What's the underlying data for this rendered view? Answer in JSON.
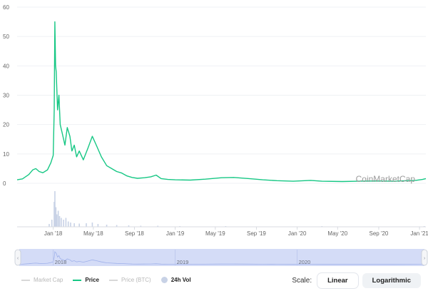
{
  "chart_data": {
    "type": "line",
    "watermark": "CoinMarketCap",
    "ylim": [
      0,
      60
    ],
    "yticks": [
      "0",
      "10",
      "20",
      "30",
      "40",
      "50",
      "60"
    ],
    "xticks": [
      "Jan '18",
      "May '18",
      "Sep '18",
      "Jan '19",
      "May '19",
      "Sep '19",
      "Jan '20",
      "May '20",
      "Sep '20",
      "Jan '21"
    ],
    "navigator_labels": [
      "2018",
      "2019",
      "2020"
    ],
    "grid": true,
    "series": [
      {
        "name": "Price",
        "color": "#16c784",
        "points": [
          [
            "2017-09-15",
            1.2
          ],
          [
            "2017-10-01",
            1.5
          ],
          [
            "2017-10-20",
            3.0
          ],
          [
            "2017-11-01",
            4.6
          ],
          [
            "2017-11-10",
            5.0
          ],
          [
            "2017-11-20",
            4.0
          ],
          [
            "2017-12-01",
            3.6
          ],
          [
            "2017-12-15",
            4.6
          ],
          [
            "2017-12-25",
            7.0
          ],
          [
            "2018-01-01",
            9.5
          ],
          [
            "2018-01-04",
            25.0
          ],
          [
            "2018-01-06",
            55.0
          ],
          [
            "2018-01-08",
            40.0
          ],
          [
            "2018-01-10",
            38.0
          ],
          [
            "2018-01-14",
            25.0
          ],
          [
            "2018-01-18",
            30.0
          ],
          [
            "2018-01-22",
            20.0
          ],
          [
            "2018-01-28",
            17.0
          ],
          [
            "2018-02-05",
            13.0
          ],
          [
            "2018-02-12",
            19.0
          ],
          [
            "2018-02-20",
            16.0
          ],
          [
            "2018-02-26",
            11.0
          ],
          [
            "2018-03-05",
            13.0
          ],
          [
            "2018-03-12",
            9.0
          ],
          [
            "2018-03-20",
            11.0
          ],
          [
            "2018-04-01",
            8.0
          ],
          [
            "2018-04-15",
            12.0
          ],
          [
            "2018-04-28",
            16.0
          ],
          [
            "2018-05-10",
            13.0
          ],
          [
            "2018-05-25",
            9.0
          ],
          [
            "2018-06-10",
            6.0
          ],
          [
            "2018-06-25",
            5.0
          ],
          [
            "2018-07-10",
            4.0
          ],
          [
            "2018-07-25",
            3.5
          ],
          [
            "2018-08-10",
            2.5
          ],
          [
            "2018-08-25",
            2.0
          ],
          [
            "2018-09-10",
            1.7
          ],
          [
            "2018-10-01",
            1.9
          ],
          [
            "2018-10-20",
            2.2
          ],
          [
            "2018-11-05",
            2.8
          ],
          [
            "2018-11-20",
            1.6
          ],
          [
            "2018-12-10",
            1.3
          ],
          [
            "2019-01-01",
            1.2
          ],
          [
            "2019-02-15",
            1.1
          ],
          [
            "2019-04-01",
            1.4
          ],
          [
            "2019-05-20",
            1.9
          ],
          [
            "2019-06-25",
            2.0
          ],
          [
            "2019-08-10",
            1.6
          ],
          [
            "2019-09-20",
            1.2
          ],
          [
            "2019-11-01",
            0.9
          ],
          [
            "2019-12-20",
            0.7
          ],
          [
            "2020-02-10",
            1.0
          ],
          [
            "2020-03-15",
            0.7
          ],
          [
            "2020-05-15",
            0.6
          ],
          [
            "2020-07-01",
            0.7
          ],
          [
            "2020-08-20",
            0.8
          ],
          [
            "2020-10-15",
            0.7
          ],
          [
            "2020-12-20",
            1.0
          ],
          [
            "2021-01-10",
            1.3
          ],
          [
            "2021-01-20",
            1.6
          ]
        ]
      }
    ],
    "volume": {
      "name": "24h Vol",
      "color": "#c8d2e6",
      "points": [
        [
          "2017-12-20",
          0.08
        ],
        [
          "2017-12-28",
          0.2
        ],
        [
          "2018-01-04",
          0.7
        ],
        [
          "2018-01-06",
          1.0
        ],
        [
          "2018-01-09",
          0.55
        ],
        [
          "2018-01-12",
          0.35
        ],
        [
          "2018-01-16",
          0.45
        ],
        [
          "2018-01-20",
          0.3
        ],
        [
          "2018-01-25",
          0.25
        ],
        [
          "2018-02-01",
          0.2
        ],
        [
          "2018-02-08",
          0.25
        ],
        [
          "2018-02-15",
          0.15
        ],
        [
          "2018-02-22",
          0.12
        ],
        [
          "2018-03-05",
          0.1
        ],
        [
          "2018-03-20",
          0.09
        ],
        [
          "2018-04-10",
          0.1
        ],
        [
          "2018-04-28",
          0.12
        ],
        [
          "2018-05-15",
          0.08
        ],
        [
          "2018-06-10",
          0.06
        ],
        [
          "2018-07-10",
          0.05
        ],
        [
          "2018-08-15",
          0.04
        ],
        [
          "2018-09-20",
          0.03
        ],
        [
          "2018-11-10",
          0.03
        ],
        [
          "2019-01-15",
          0.02
        ],
        [
          "2019-06-01",
          0.02
        ],
        [
          "2019-11-01",
          0.01
        ],
        [
          "2020-03-15",
          0.02
        ],
        [
          "2020-09-01",
          0.01
        ],
        [
          "2021-01-15",
          0.02
        ]
      ]
    }
  },
  "legend": {
    "market_cap": "Market Cap",
    "price": "Price",
    "price_btc": "Price (BTC)",
    "volume": "24h Vol"
  },
  "scale": {
    "label": "Scale:",
    "linear": "Linear",
    "logarithmic": "Logarithmic",
    "selected": "Linear"
  }
}
